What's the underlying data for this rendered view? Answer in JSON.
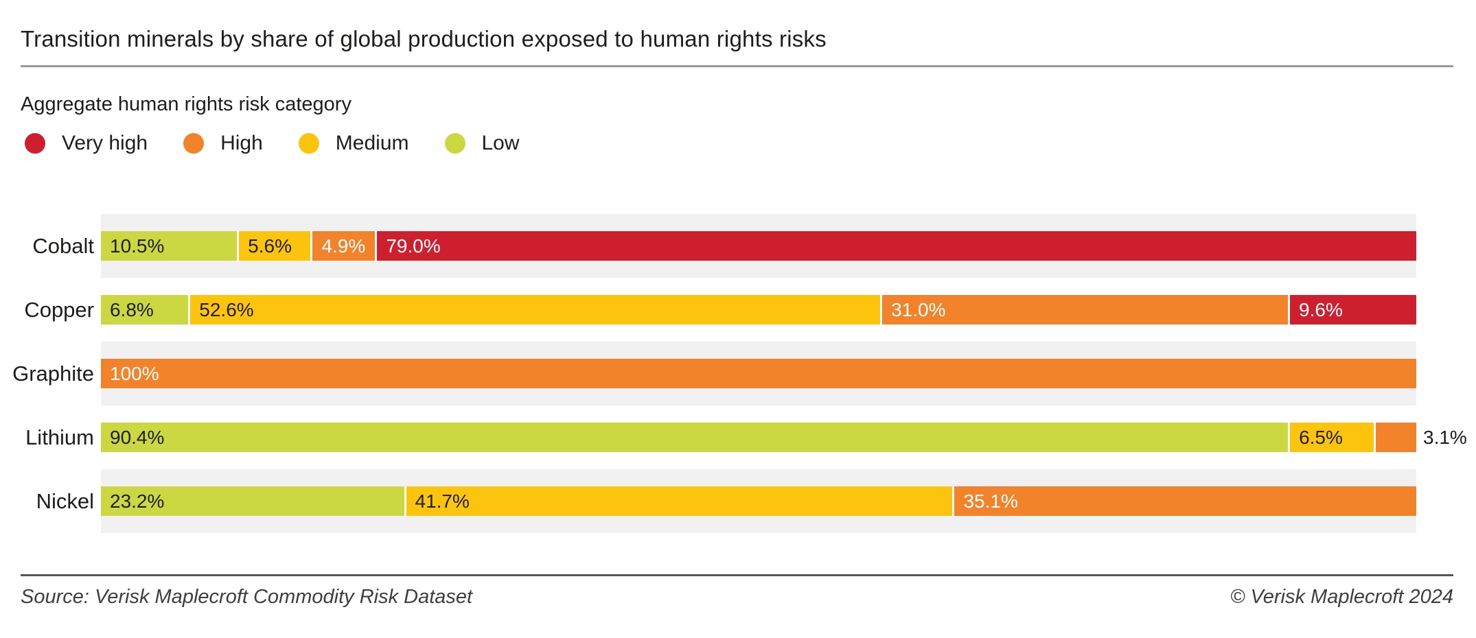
{
  "title": "Transition minerals by share of global production exposed to human rights risks",
  "legend": {
    "title": "Aggregate human rights risk category",
    "items": [
      {
        "label": "Very high",
        "color": "#cd1f2d"
      },
      {
        "label": "High",
        "color": "#f2832a"
      },
      {
        "label": "Medium",
        "color": "#fdc40e"
      },
      {
        "label": "Low",
        "color": "#cbd842"
      }
    ]
  },
  "chart_data": {
    "type": "bar",
    "subtype": "horizontal-stacked-100-percent",
    "unit": "%",
    "title": "Transition minerals by share of global production exposed to human rights risks",
    "categories": [
      "Cobalt",
      "Copper",
      "Graphite",
      "Lithium",
      "Nickel"
    ],
    "series_order": [
      "Low",
      "Medium",
      "High",
      "Very high"
    ],
    "colors": {
      "Low": "#cbd842",
      "Medium": "#fdc40e",
      "High": "#f2832a",
      "Very high": "#cd1f2d"
    },
    "label_colors": {
      "Low": "#1d1d1b",
      "Medium": "#1d1d1b",
      "High": "#ffffff",
      "Very high": "#ffffff"
    },
    "row_stripe_color": "#f1f1f2",
    "xlim": [
      0,
      100
    ],
    "grid": false,
    "legend_position": "top-left",
    "rows": [
      {
        "category": "Cobalt",
        "segments": [
          {
            "risk": "Low",
            "value": 10.5,
            "label": "10.5%"
          },
          {
            "risk": "Medium",
            "value": 5.6,
            "label": "5.6%"
          },
          {
            "risk": "High",
            "value": 4.9,
            "label": "4.9%"
          },
          {
            "risk": "Very high",
            "value": 79.0,
            "label": "79.0%"
          }
        ]
      },
      {
        "category": "Copper",
        "segments": [
          {
            "risk": "Low",
            "value": 6.8,
            "label": "6.8%"
          },
          {
            "risk": "Medium",
            "value": 52.6,
            "label": "52.6%"
          },
          {
            "risk": "High",
            "value": 31.0,
            "label": "31.0%"
          },
          {
            "risk": "Very high",
            "value": 9.6,
            "label": "9.6%"
          }
        ]
      },
      {
        "category": "Graphite",
        "segments": [
          {
            "risk": "High",
            "value": 100,
            "label": "100%"
          }
        ]
      },
      {
        "category": "Lithium",
        "segments": [
          {
            "risk": "Low",
            "value": 90.4,
            "label": "90.4%"
          },
          {
            "risk": "Medium",
            "value": 6.5,
            "label": "6.5%"
          },
          {
            "risk": "High",
            "value": 3.1,
            "label": "3.1%",
            "label_outside": true
          }
        ]
      },
      {
        "category": "Nickel",
        "segments": [
          {
            "risk": "Low",
            "value": 23.2,
            "label": "23.2%"
          },
          {
            "risk": "Medium",
            "value": 41.7,
            "label": "41.7%"
          },
          {
            "risk": "High",
            "value": 35.1,
            "label": "35.1%"
          }
        ]
      }
    ]
  },
  "footer": {
    "source": "Source: Verisk Maplecroft Commodity Risk Dataset",
    "copyright": "© Verisk Maplecroft 2024"
  }
}
